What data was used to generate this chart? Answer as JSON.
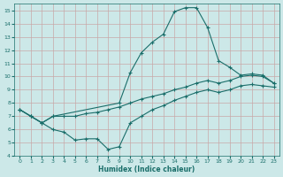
{
  "xlabel": "Humidex (Indice chaleur)",
  "xlim": [
    -0.5,
    23.5
  ],
  "ylim": [
    4,
    15.5
  ],
  "xticks": [
    0,
    1,
    2,
    3,
    4,
    5,
    6,
    7,
    8,
    9,
    10,
    11,
    12,
    13,
    14,
    15,
    16,
    17,
    18,
    19,
    20,
    21,
    22,
    23
  ],
  "yticks": [
    4,
    5,
    6,
    7,
    8,
    9,
    10,
    11,
    12,
    13,
    14,
    15
  ],
  "bg_color": "#cce8e8",
  "line_color": "#1a6e6a",
  "grid_color": "#c8a8a8",
  "line_peak_x": [
    0,
    1,
    2,
    3,
    9,
    10,
    11,
    12,
    13,
    14,
    15,
    16,
    17,
    18,
    19,
    20,
    21,
    22,
    23
  ],
  "line_peak_y": [
    7.5,
    7.0,
    6.5,
    7.0,
    8.0,
    10.3,
    11.8,
    12.6,
    13.2,
    14.9,
    15.2,
    15.2,
    13.7,
    11.2,
    10.7,
    10.1,
    10.2,
    10.1,
    9.5
  ],
  "line_mid_x": [
    0,
    1,
    2,
    3,
    4,
    5,
    6,
    7,
    8,
    9,
    10,
    11,
    12,
    13,
    14,
    15,
    16,
    17,
    18,
    19,
    20,
    21,
    22,
    23
  ],
  "line_mid_y": [
    7.5,
    7.0,
    6.5,
    7.0,
    7.0,
    7.0,
    7.2,
    7.3,
    7.5,
    7.7,
    8.0,
    8.3,
    8.5,
    8.7,
    9.0,
    9.2,
    9.5,
    9.7,
    9.5,
    9.7,
    10.0,
    10.1,
    10.0,
    9.5
  ],
  "line_bot_x": [
    0,
    1,
    2,
    3,
    4,
    5,
    6,
    7,
    8,
    9,
    10,
    11,
    12,
    13,
    14,
    15,
    16,
    17,
    18,
    19,
    20,
    21,
    22,
    23
  ],
  "line_bot_y": [
    7.5,
    7.0,
    6.5,
    6.0,
    5.8,
    5.2,
    5.3,
    5.3,
    4.5,
    4.7,
    6.5,
    7.0,
    7.5,
    7.8,
    8.2,
    8.5,
    8.8,
    9.0,
    8.8,
    9.0,
    9.3,
    9.4,
    9.3,
    9.2
  ]
}
